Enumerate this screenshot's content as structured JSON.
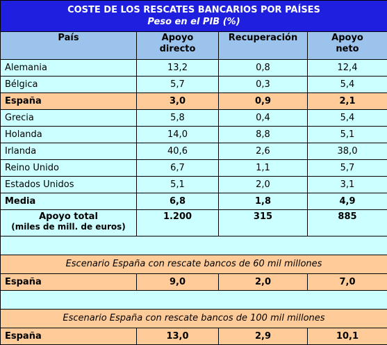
{
  "title": "COSTE DE LOS RESCATES BANCARIOS POR PAÍSES",
  "subtitle": "Peso en el PIB (%)",
  "headers": {
    "pais": "País",
    "apoyo_directo_1": "Apoyo",
    "apoyo_directo_2": "directo",
    "recuperacion": "Recuperación",
    "apoyo_neto_1": "Apoyo",
    "apoyo_neto_2": "neto"
  },
  "rows": [
    {
      "pais": "Alemania",
      "directo": "13,2",
      "recup": "0,8",
      "neto": "12,4"
    },
    {
      "pais": "Bélgica",
      "directo": "5,7",
      "recup": "0,3",
      "neto": "5,4"
    },
    {
      "pais": "España",
      "directo": "3,0",
      "recup": "0,9",
      "neto": "2,1"
    },
    {
      "pais": "Grecia",
      "directo": "5,8",
      "recup": "0,4",
      "neto": "5,4"
    },
    {
      "pais": "Holanda",
      "directo": "14,0",
      "recup": "8,8",
      "neto": "5,1"
    },
    {
      "pais": "Irlanda",
      "directo": "40,6",
      "recup": "2,6",
      "neto": "38,0"
    },
    {
      "pais": "Reino Unido",
      "directo": "6,7",
      "recup": "1,1",
      "neto": "5,7"
    },
    {
      "pais": "Estados Unidos",
      "directo": "5,1",
      "recup": "2,0",
      "neto": "3,1"
    },
    {
      "pais": "Media",
      "directo": "6,8",
      "recup": "1,8",
      "neto": "4,9"
    }
  ],
  "total": {
    "label1": "Apoyo total",
    "label2": "(miles de mill. de euros)",
    "directo": "1.200",
    "recup": "315",
    "neto": "885"
  },
  "scenario1": {
    "title": "Escenario España con rescate bancos de 60 mil millones",
    "pais": "España",
    "directo": "9,0",
    "recup": "2,0",
    "neto": "7,0"
  },
  "scenario2": {
    "title": "Escenario España con rescate bancos de 100 mil millones",
    "pais": "España",
    "directo": "13,0",
    "recup": "2,9",
    "neto": "10,1"
  }
}
